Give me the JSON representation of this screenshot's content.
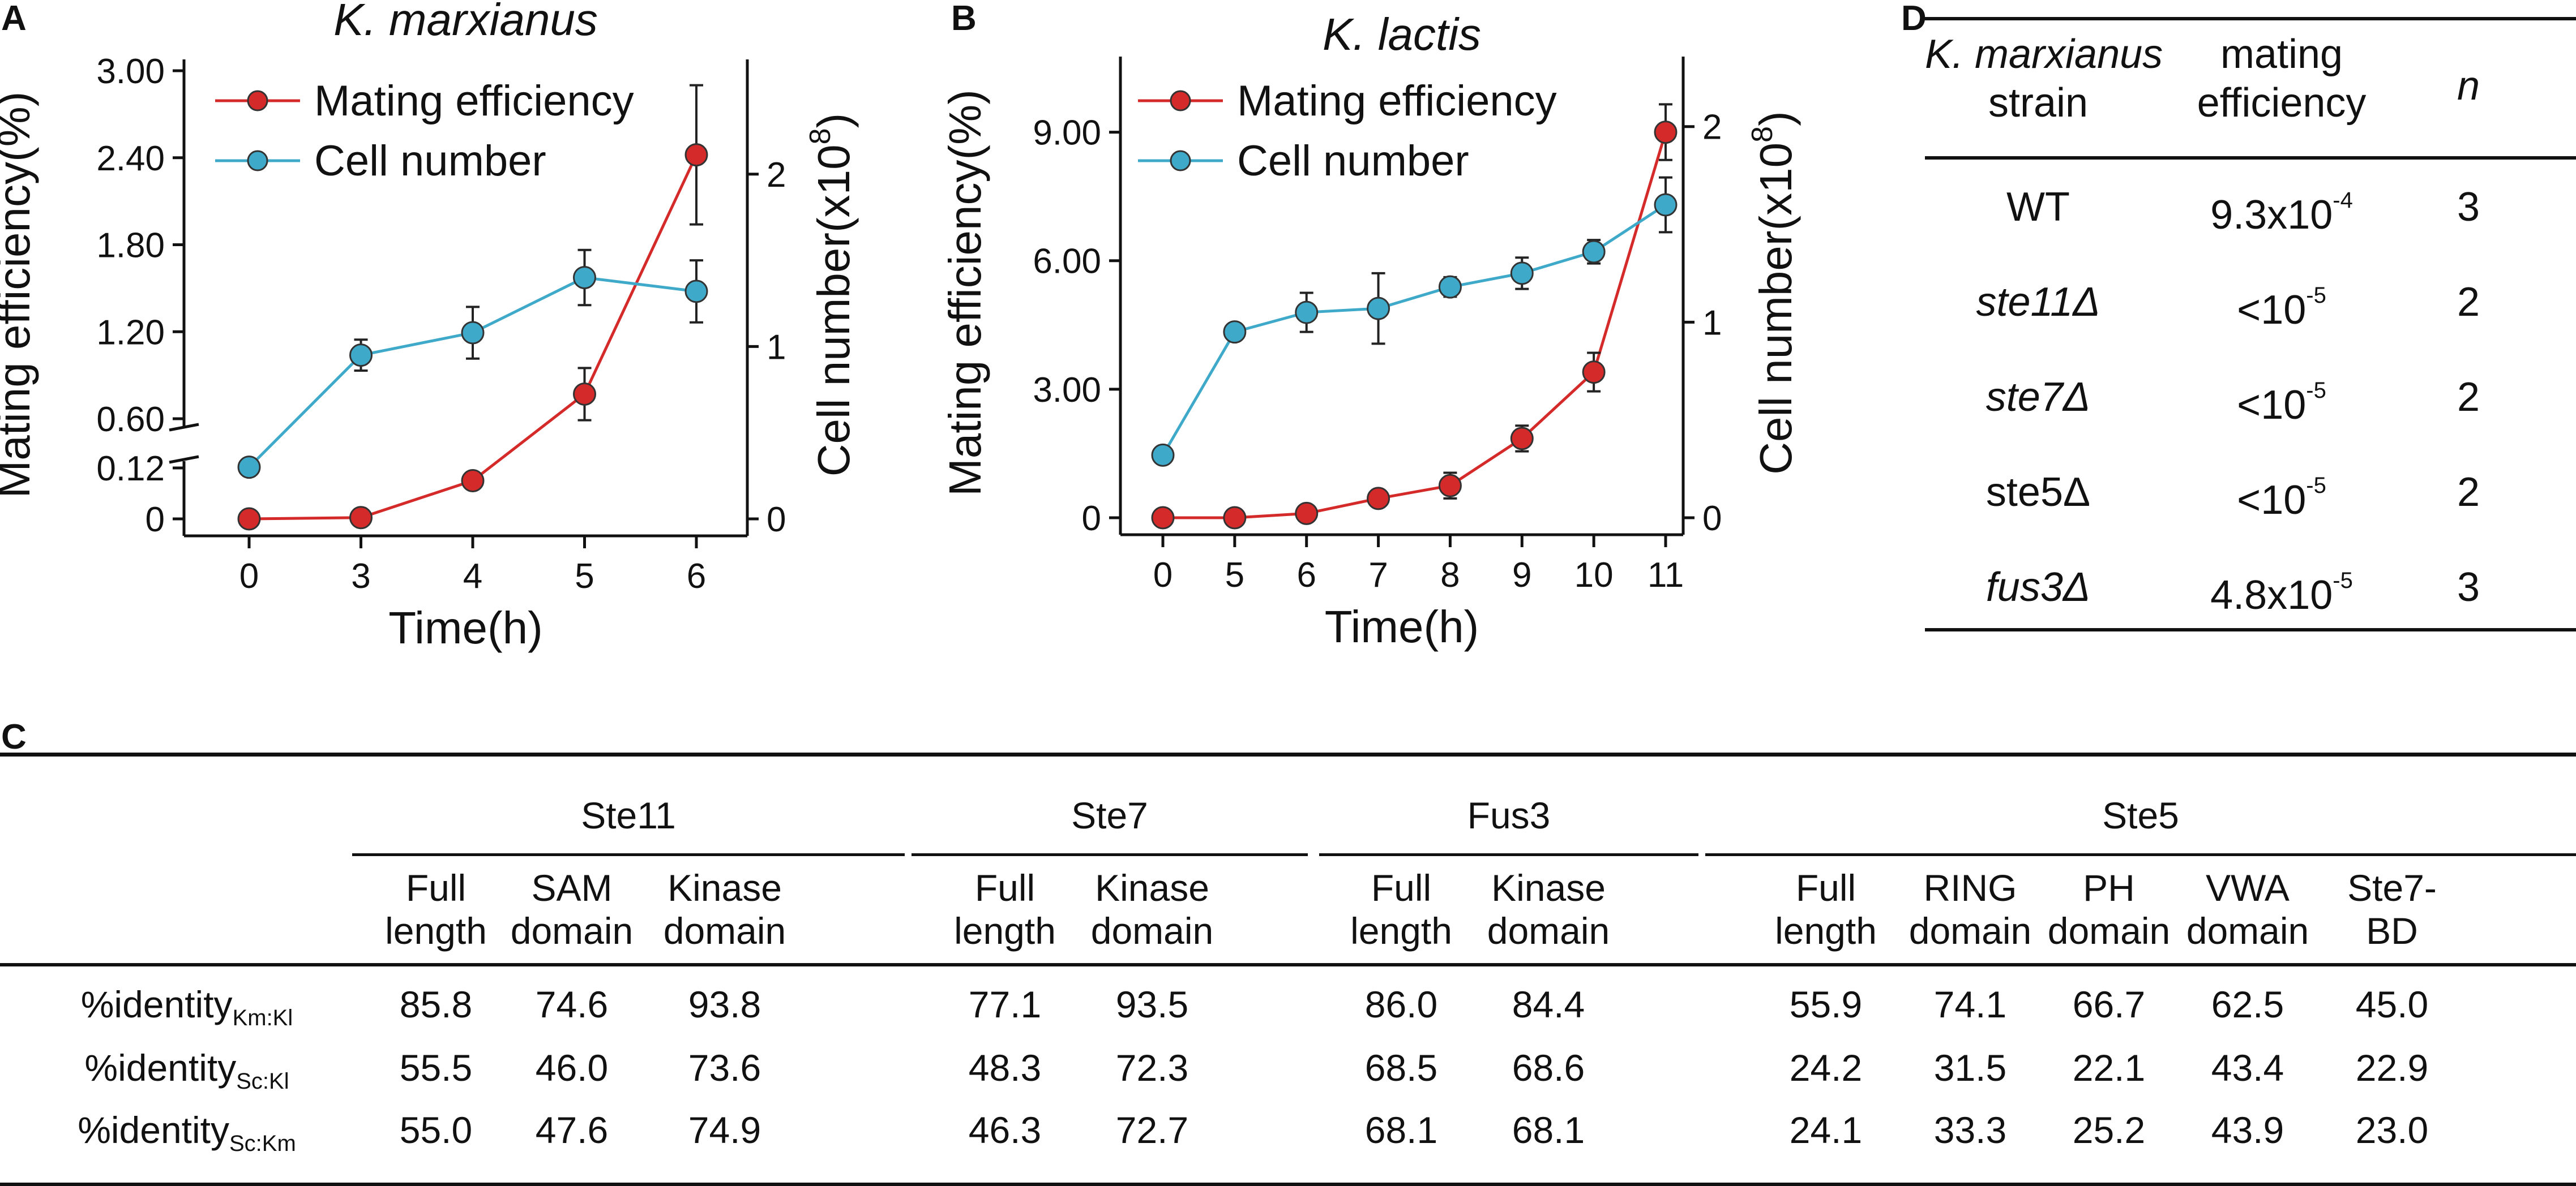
{
  "panels": {
    "a": "A",
    "b": "B",
    "c": "C",
    "d": "D"
  },
  "chart_data": [
    {
      "id": "A",
      "type": "line",
      "title": "K. marxianus",
      "xlabel": "Time(h)",
      "ylabel": "Mating efficiency(%)",
      "y2label": "Cell number(x10",
      "y2label_exponent": "8",
      "y2label_close": ")",
      "categories": [
        "0",
        "3",
        "4",
        "5",
        "6"
      ],
      "y_ticks": [
        "0",
        "0.12",
        "0.60",
        "1.20",
        "1.80",
        "2.40",
        "3.00"
      ],
      "y2_ticks": [
        "0",
        "1",
        "2"
      ],
      "y_axis_break": {
        "from": 0.12,
        "to": 0.6
      },
      "ylim": [
        0,
        3.0
      ],
      "y2lim": [
        0,
        2.6
      ],
      "legend_position": "top-left",
      "series": [
        {
          "name": "Mating efficiency",
          "color": "#d42a2a",
          "axis": "left",
          "values": [
            0.0,
            0.003,
            0.09,
            0.77,
            2.42
          ],
          "errors": [
            0.0,
            0.0,
            0.0,
            0.18,
            0.48
          ]
        },
        {
          "name": "Cell number",
          "color": "#3fa9c9",
          "axis": "right",
          "values": [
            0.3,
            0.95,
            1.08,
            1.4,
            1.32
          ],
          "errors": [
            0.02,
            0.09,
            0.15,
            0.16,
            0.18
          ]
        }
      ]
    },
    {
      "id": "B",
      "type": "line",
      "title": "K. lactis",
      "xlabel": "Time(h)",
      "ylabel": "Mating efficiency(%)",
      "y2label": "Cell number(x10",
      "y2label_exponent": "8",
      "y2label_close": ")",
      "categories": [
        "0",
        "5",
        "6",
        "7",
        "8",
        "9",
        "10",
        "11"
      ],
      "y_ticks": [
        "0",
        "3.00",
        "6.00",
        "9.00"
      ],
      "y2_ticks": [
        "0",
        "1",
        "2"
      ],
      "ylim": [
        0,
        10.5
      ],
      "y2lim": [
        0,
        2.3
      ],
      "legend_position": "top-left",
      "series": [
        {
          "name": "Mating efficiency",
          "color": "#d42a2a",
          "axis": "left",
          "values": [
            0.0,
            0.0,
            0.1,
            0.45,
            0.75,
            1.85,
            3.4,
            9.0
          ],
          "errors": [
            0.0,
            0.0,
            0.05,
            0.1,
            0.3,
            0.3,
            0.45,
            0.65
          ]
        },
        {
          "name": "Cell number",
          "color": "#3fa9c9",
          "axis": "right",
          "values": [
            0.32,
            0.95,
            1.05,
            1.07,
            1.18,
            1.25,
            1.36,
            1.6
          ],
          "errors": [
            0.0,
            0.0,
            0.1,
            0.18,
            0.05,
            0.08,
            0.06,
            0.14
          ]
        }
      ]
    },
    {
      "id": "C",
      "type": "table",
      "groups": [
        {
          "name": "Ste11",
          "span": 3
        },
        {
          "name": "Ste7",
          "span": 2
        },
        {
          "name": "Fus3",
          "span": 2
        },
        {
          "name": "Ste5",
          "span": 5
        }
      ],
      "columns": [
        [
          "Full",
          "length"
        ],
        [
          "SAM",
          "domain"
        ],
        [
          "Kinase",
          "domain"
        ],
        [
          "Full",
          "length"
        ],
        [
          "Kinase",
          "domain"
        ],
        [
          "Full",
          "length"
        ],
        [
          "Kinase",
          "domain"
        ],
        [
          "Full",
          "length"
        ],
        [
          "RING",
          "domain"
        ],
        [
          "PH",
          "domain"
        ],
        [
          "VWA",
          "domain"
        ],
        [
          "Ste7-",
          "BD"
        ]
      ],
      "rows": [
        {
          "label": "%identity",
          "sub": "Km:Kl",
          "values": [
            "85.8",
            "74.6",
            "93.8",
            "77.1",
            "93.5",
            "86.0",
            "84.4",
            "55.9",
            "74.1",
            "66.7",
            "62.5",
            "45.0"
          ]
        },
        {
          "label": "%identity",
          "sub": "Sc:Kl",
          "values": [
            "55.5",
            "46.0",
            "73.6",
            "48.3",
            "72.3",
            "68.5",
            "68.6",
            "24.2",
            "31.5",
            "22.1",
            "43.4",
            "22.9"
          ]
        },
        {
          "label": "%identity",
          "sub": "Sc:Km",
          "values": [
            "55.0",
            "47.6",
            "74.9",
            "46.3",
            "72.7",
            "68.1",
            "68.1",
            "24.1",
            "33.3",
            "25.2",
            "43.9",
            "23.0"
          ]
        }
      ]
    },
    {
      "id": "D",
      "type": "table",
      "headers": [
        [
          "K. marxianus",
          "strain"
        ],
        [
          "mating",
          "efficiency"
        ],
        [
          "n"
        ]
      ],
      "rows": [
        {
          "strain": "WT",
          "italic": false,
          "eff_base": "9.3x10",
          "eff_exp": "-4",
          "n": "3"
        },
        {
          "strain": "ste11Δ",
          "italic": true,
          "eff_base": "<10",
          "eff_exp": "-5",
          "n": "2"
        },
        {
          "strain": "ste7Δ",
          "italic": true,
          "eff_base": "<10",
          "eff_exp": "-5",
          "n": "2"
        },
        {
          "strain": "ste5Δ",
          "italic": false,
          "eff_base": "<10",
          "eff_exp": "-5",
          "n": "2"
        },
        {
          "strain": "fus3Δ",
          "italic": true,
          "eff_base": "4.8x10",
          "eff_exp": "-5",
          "n": "3"
        }
      ]
    }
  ]
}
